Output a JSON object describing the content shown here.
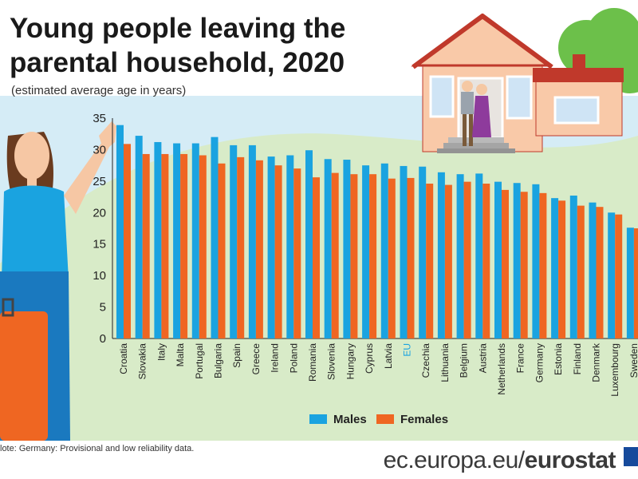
{
  "title_line1": "Young people leaving the",
  "title_line2": "parental household, 2020",
  "subtitle": "(estimated average age in years)",
  "note": "lote: Germany: Provisional and low reliability data.",
  "source_plain": "ec.europa.eu/",
  "source_bold": "eurostat",
  "colors": {
    "males": "#1aa3e0",
    "females": "#ef6622",
    "eu_label": "#1aa3e0",
    "sky": "#d5ecf6",
    "grass": "#d8ebc8"
  },
  "chart_data": {
    "type": "bar",
    "ylim": [
      0,
      35
    ],
    "yticks": [
      0,
      5,
      10,
      15,
      20,
      25,
      30,
      35
    ],
    "categories": [
      "Croatia",
      "Slovakia",
      "Italy",
      "Malta",
      "Portugal",
      "Bulgaria",
      "Spain",
      "Greece",
      "Ireland",
      "Poland",
      "Romania",
      "Slovenia",
      "Hungary",
      "Cyprus",
      "Latvia",
      "EU",
      "Czechia",
      "Lithuania",
      "Belgium",
      "Austria",
      "Netherlands",
      "France",
      "Germany",
      "Estonia",
      "Finland",
      "Denmark",
      "Luxembourg",
      "Sweden"
    ],
    "highlight_category": "EU",
    "series": [
      {
        "name": "Males",
        "values": [
          33.9,
          32.2,
          31.2,
          31.0,
          31.0,
          32.0,
          30.7,
          30.7,
          28.9,
          29.1,
          29.9,
          28.5,
          28.4,
          27.5,
          27.8,
          27.4,
          27.3,
          26.4,
          26.1,
          26.2,
          24.9,
          24.7,
          24.5,
          22.3,
          22.7,
          21.6,
          20.0,
          17.6
        ]
      },
      {
        "name": "Females",
        "values": [
          30.9,
          29.3,
          29.3,
          29.3,
          29.1,
          27.8,
          28.8,
          28.3,
          27.5,
          27.0,
          25.6,
          26.3,
          26.1,
          26.1,
          25.4,
          25.5,
          24.6,
          24.4,
          24.9,
          24.6,
          23.6,
          23.3,
          23.1,
          21.9,
          21.1,
          20.9,
          19.7,
          17.5
        ]
      }
    ],
    "legend_position": "bottom-center",
    "grid": false
  }
}
